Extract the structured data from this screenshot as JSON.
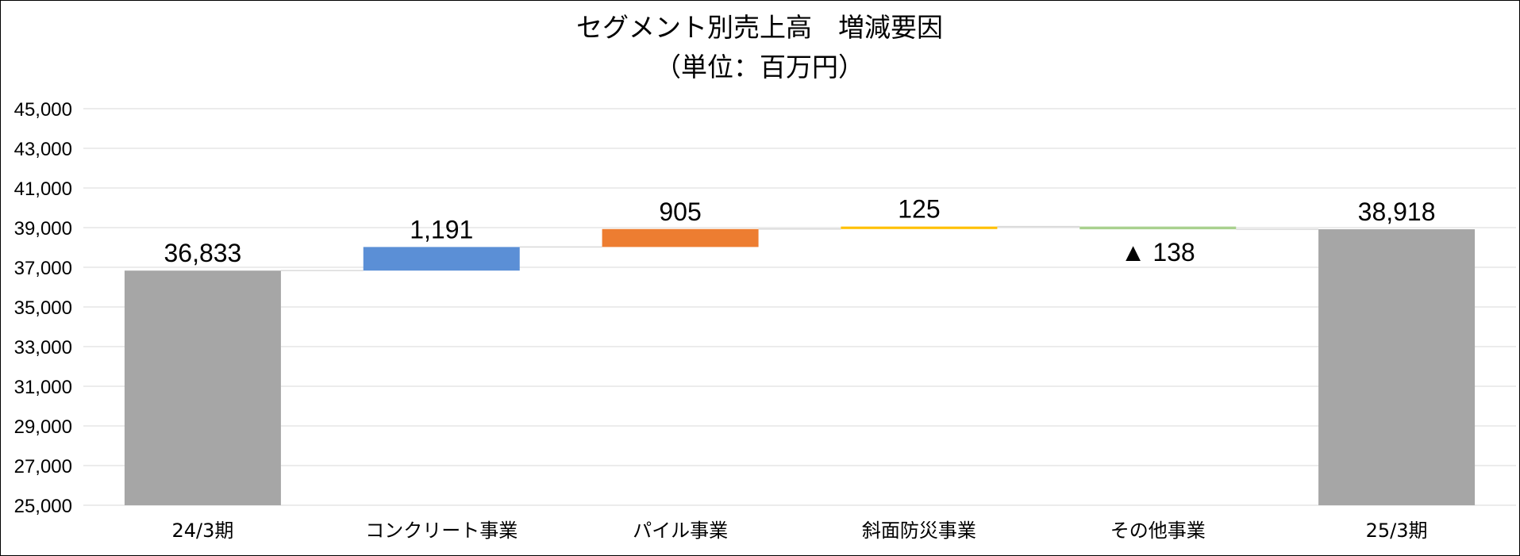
{
  "chart_data": {
    "type": "bar",
    "subtype": "waterfall",
    "title": "セグメント別売上高　増減要因",
    "subtitle": "（単位：百万円）",
    "categories": [
      "24/3期",
      "コンクリート事業",
      "パイル事業",
      "斜面防災事業",
      "その他事業",
      "25/3期"
    ],
    "values": [
      36833,
      1191,
      905,
      125,
      -138,
      38918
    ],
    "value_labels": [
      "36,833",
      "1,191",
      "905",
      "125",
      "▲ 138",
      "38,918"
    ],
    "bar_kinds": [
      "total",
      "delta",
      "delta",
      "delta",
      "delta",
      "total"
    ],
    "colors": [
      "#a6a6a6",
      "#5b8fd6",
      "#ed7d31",
      "#ffc000",
      "#a9d18e",
      "#a6a6a6"
    ],
    "ylim": [
      25000,
      45000
    ],
    "yticks": [
      "25,000",
      "27,000",
      "29,000",
      "31,000",
      "33,000",
      "35,000",
      "37,000",
      "39,000",
      "41,000",
      "43,000",
      "45,000"
    ],
    "ytick_values": [
      25000,
      27000,
      29000,
      31000,
      33000,
      35000,
      37000,
      39000,
      41000,
      43000,
      45000
    ],
    "grid": true,
    "legend": "none",
    "xlabel": "",
    "ylabel": ""
  }
}
